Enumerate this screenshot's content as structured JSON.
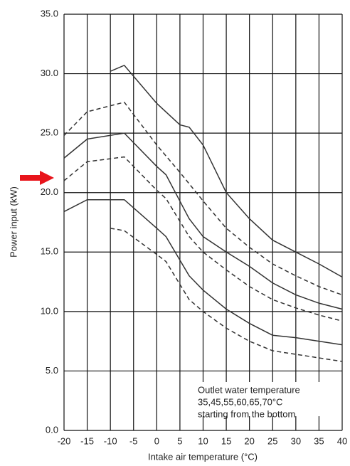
{
  "chart_data": {
    "type": "line",
    "xlabel": "Intake air temperature (°C)",
    "ylabel": "Power input (kW)",
    "annotation": [
      "Outlet water temperature",
      "35,45,55,60,65,70°C",
      "starting from the bottom"
    ],
    "xlim": [
      -20,
      40
    ],
    "xticks": [
      -20,
      -15,
      -10,
      -5,
      0,
      5,
      10,
      15,
      20,
      25,
      30,
      35,
      40
    ],
    "ylim": [
      0,
      35
    ],
    "yticks": [
      {
        "value": 0,
        "label": "0.0"
      },
      {
        "value": 5,
        "label": "5.0"
      },
      {
        "value": 10,
        "label": "10.0"
      },
      {
        "value": 15,
        "label": "15.0"
      },
      {
        "value": 20,
        "label": "20.0"
      },
      {
        "value": 25,
        "label": "25.0"
      },
      {
        "value": 30,
        "label": "30.0"
      },
      {
        "value": 35,
        "label": "35.0"
      }
    ],
    "grid": true,
    "series": [
      {
        "color": "#333333",
        "style": "dashed",
        "x": [
          -10,
          -7,
          0,
          2,
          7,
          10,
          15,
          20,
          25,
          30,
          35,
          40
        ],
        "values": [
          17,
          16.8,
          14.8,
          14.2,
          11,
          10,
          8.6,
          7.5,
          6.7,
          6.4,
          6.1,
          5.8
        ]
      },
      {
        "color": "#333333",
        "style": "solid",
        "x": [
          -20,
          -15,
          -7,
          0,
          2,
          7,
          10,
          15,
          20,
          25,
          30,
          35,
          40
        ],
        "values": [
          18.4,
          19.4,
          19.4,
          17,
          16.3,
          13,
          11.8,
          10.2,
          9,
          8,
          7.8,
          7.5,
          7.2
        ]
      },
      {
        "color": "#333333",
        "style": "dashed",
        "x": [
          -20,
          -15,
          -7,
          0,
          2,
          7,
          10,
          15,
          20,
          25,
          30,
          35,
          40
        ],
        "values": [
          21,
          22.6,
          23,
          20.2,
          19.5,
          16.3,
          15,
          13.5,
          12.1,
          11,
          10.3,
          9.7,
          9.2
        ]
      },
      {
        "color": "#333333",
        "style": "solid",
        "x": [
          -20,
          -15,
          -7,
          0,
          2,
          7,
          10,
          15,
          20,
          25,
          30,
          35,
          40
        ],
        "values": [
          22.9,
          24.5,
          25,
          22.2,
          21.5,
          17.8,
          16.3,
          15,
          13.8,
          12.4,
          11.4,
          10.7,
          10.2
        ]
      },
      {
        "color": "#333333",
        "style": "dashed",
        "x": [
          -20,
          -15,
          -7,
          0,
          5,
          10,
          15,
          20,
          25,
          30,
          35,
          40
        ],
        "values": [
          24.8,
          26.8,
          27.6,
          24,
          21.7,
          19.3,
          17,
          15.4,
          14,
          13,
          12.1,
          11.4
        ]
      },
      {
        "color": "#333333",
        "style": "solid",
        "x": [
          -10,
          -7,
          0,
          5,
          7,
          10,
          15,
          20,
          25,
          30,
          35,
          40
        ],
        "values": [
          30.2,
          30.7,
          27.5,
          25.7,
          25.5,
          24,
          20,
          17.8,
          16,
          15,
          14,
          12.9
        ]
      }
    ]
  }
}
